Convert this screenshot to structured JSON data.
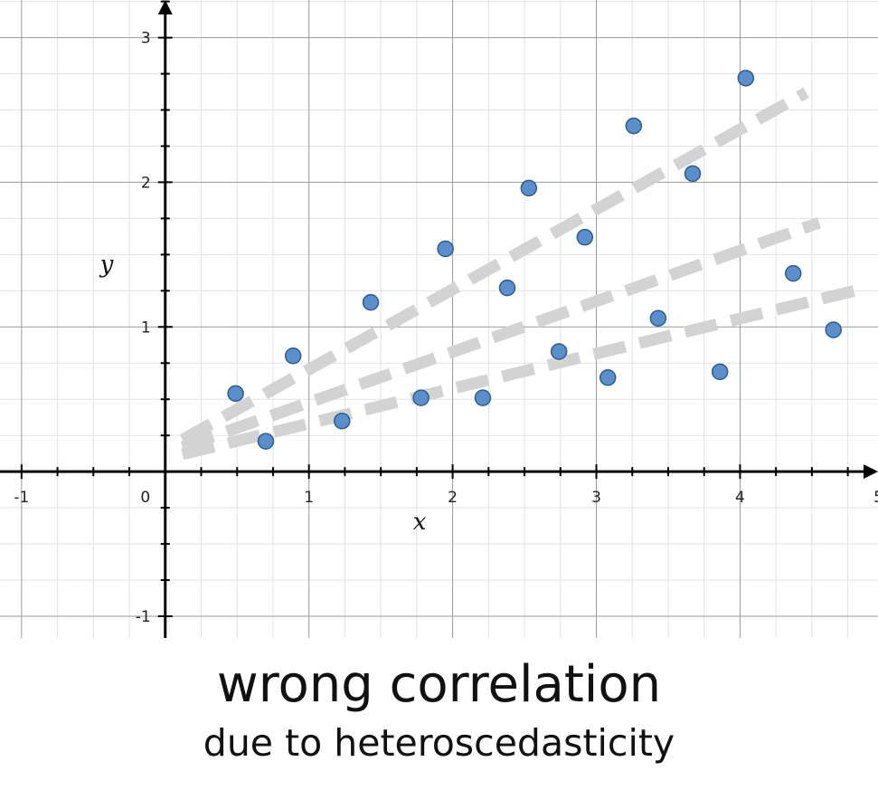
{
  "chart_data": {
    "type": "scatter",
    "xlabel": "x",
    "ylabel": "y",
    "xlim": [
      -1.15,
      4.96
    ],
    "ylim": [
      -1.15,
      3.26
    ],
    "x_ticks": [
      -1,
      0,
      1,
      2,
      3,
      4,
      5
    ],
    "x_tick_labels": [
      "-1",
      "0",
      "1",
      "2",
      "3",
      "4",
      "5"
    ],
    "y_ticks": [
      -1,
      1,
      2,
      3
    ],
    "y_tick_labels": [
      "-1",
      "1",
      "2",
      "3"
    ],
    "grid": true,
    "minor_grid_step": 0.25,
    "points": [
      {
        "x": 0.49,
        "y": 0.54
      },
      {
        "x": 0.7,
        "y": 0.21
      },
      {
        "x": 0.89,
        "y": 0.8
      },
      {
        "x": 1.23,
        "y": 0.35
      },
      {
        "x": 1.43,
        "y": 1.17
      },
      {
        "x": 1.78,
        "y": 0.51
      },
      {
        "x": 1.95,
        "y": 1.54
      },
      {
        "x": 2.21,
        "y": 0.51
      },
      {
        "x": 2.38,
        "y": 1.27
      },
      {
        "x": 2.53,
        "y": 1.96
      },
      {
        "x": 2.74,
        "y": 0.83
      },
      {
        "x": 2.92,
        "y": 1.62
      },
      {
        "x": 3.08,
        "y": 0.65
      },
      {
        "x": 3.26,
        "y": 2.39
      },
      {
        "x": 3.43,
        "y": 1.06
      },
      {
        "x": 3.67,
        "y": 2.06
      },
      {
        "x": 3.86,
        "y": 0.69
      },
      {
        "x": 4.04,
        "y": 2.72
      },
      {
        "x": 4.37,
        "y": 1.37
      },
      {
        "x": 4.65,
        "y": 0.98
      }
    ],
    "trend_lines": [
      {
        "x1": 0.12,
        "y1": 0.22,
        "x2": 4.46,
        "y2": 2.62
      },
      {
        "x1": 0.12,
        "y1": 0.17,
        "x2": 4.55,
        "y2": 1.72
      },
      {
        "x1": 0.12,
        "y1": 0.12,
        "x2": 4.88,
        "y2": 1.27
      }
    ],
    "point_color": "#5b8fcb",
    "point_stroke": "#2e5d8e",
    "trend_color": "#d3d3d3"
  },
  "caption": {
    "main": "wrong correlation",
    "sub": "due to heteroscedasticity"
  }
}
